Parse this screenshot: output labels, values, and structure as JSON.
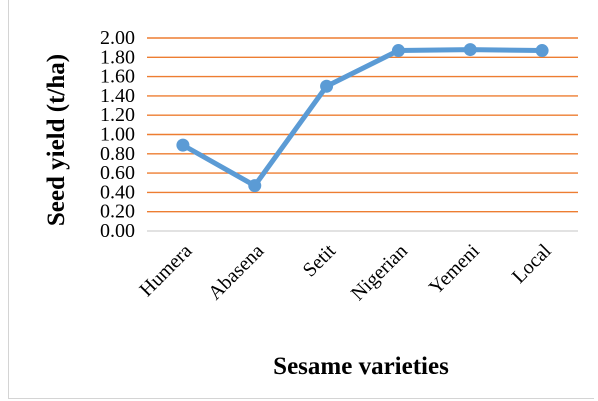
{
  "chart_data": {
    "type": "line",
    "categories": [
      "Humera",
      "Abasena",
      "Setit",
      "Nigerian",
      "Yemeni",
      "Local"
    ],
    "values": [
      0.89,
      0.47,
      1.5,
      1.87,
      1.88,
      1.87
    ],
    "y_tick_labels": [
      "0.00",
      "0.20",
      "0.40",
      "0.60",
      "0.80",
      "1.00",
      "1.20",
      "1.40",
      "1.60",
      "1.80",
      "2.00"
    ],
    "xlabel": "Sesame varieties",
    "ylabel": "Seed yield (t/ha)",
    "ylim": [
      0,
      2
    ],
    "grid": true,
    "legend": "none",
    "colors": {
      "line": "#5b9bd5",
      "gridline": "#ed7d31"
    }
  }
}
